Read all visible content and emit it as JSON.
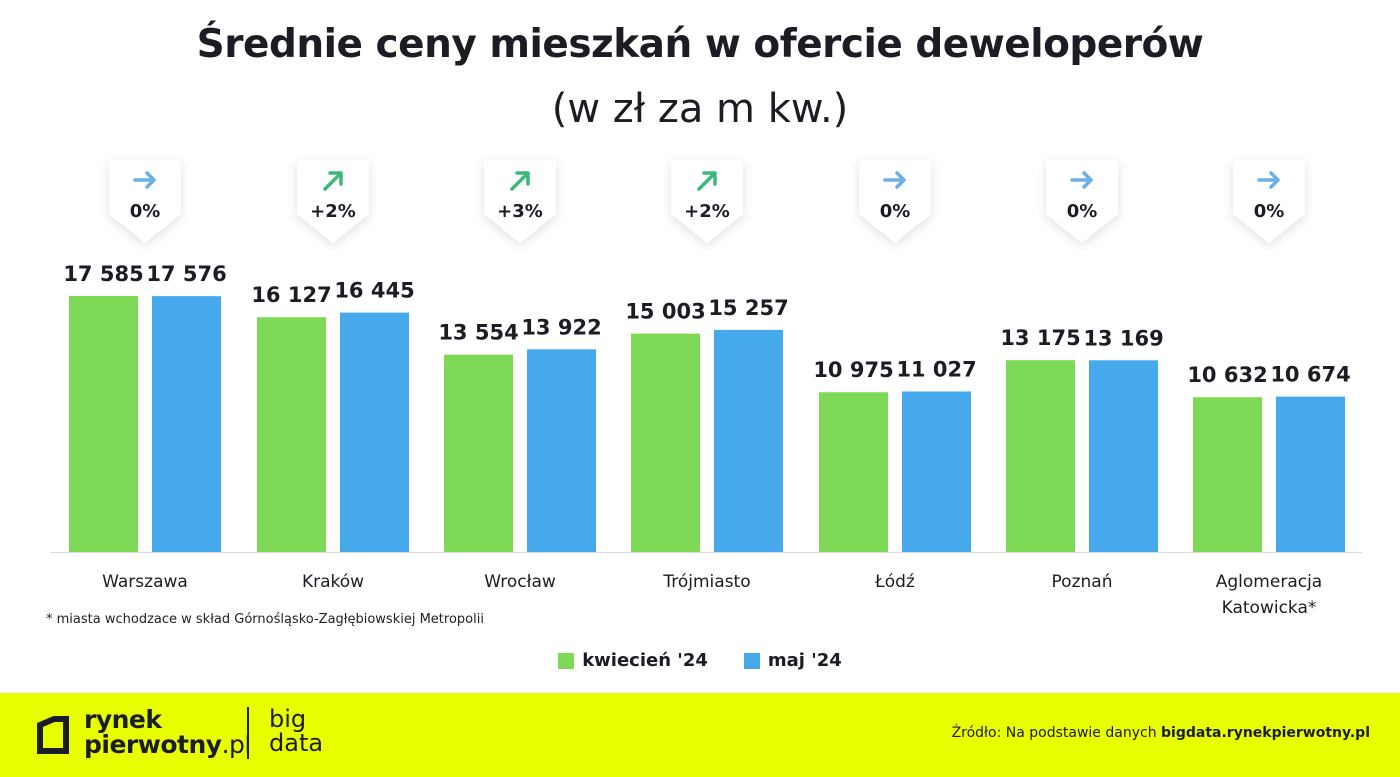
{
  "chart_data": {
    "type": "bar",
    "title": "Średnie ceny mieszkań w ofercie deweloperów",
    "subtitle": "(w zł za m kw.)",
    "categories": [
      "Warszawa",
      "Kraków",
      "Wrocław",
      "Trójmiasto",
      "Łódź",
      "Poznań",
      "Aglomeracja Katowicka*"
    ],
    "series": [
      {
        "name": "kwiecień '24",
        "color": "#7ed957",
        "values": [
          17585,
          16127,
          13554,
          15003,
          10975,
          13175,
          10632
        ],
        "labels": [
          "17 585",
          "16 127",
          "13 554",
          "15 003",
          "10 975",
          "13 175",
          "10 632"
        ]
      },
      {
        "name": "maj '24",
        "color": "#45a9ec",
        "values": [
          17576,
          16445,
          13922,
          15257,
          11027,
          13169,
          10674
        ],
        "labels": [
          "17 576",
          "16 445",
          "13 922",
          "15 257",
          "11 027",
          "13 169",
          "10 674"
        ]
      }
    ],
    "changes": [
      {
        "label": "0%",
        "direction": "flat"
      },
      {
        "label": "+2%",
        "direction": "up"
      },
      {
        "label": "+3%",
        "direction": "up"
      },
      {
        "label": "+2%",
        "direction": "up"
      },
      {
        "label": "0%",
        "direction": "flat"
      },
      {
        "label": "0%",
        "direction": "flat"
      },
      {
        "label": "0%",
        "direction": "flat"
      }
    ],
    "ylim": [
      0,
      17585
    ],
    "grid": false,
    "legend_position": "bottom-center"
  },
  "footnote": "* miasta wchodzace w skład Górnośląsko-Zagłębiowskiej Metropolii",
  "footer": {
    "logo_line1": "rynek",
    "logo_line2": "pierwotny",
    "logo_suffix": ".pl",
    "logo2_line1": "big",
    "logo2_line2": "data",
    "source_prefix": "Źródło: Na podstawie danych ",
    "source_bold": "bigdata.rynekpierwotny.pl"
  },
  "colors": {
    "flat_arrow": "#6ab0e6",
    "up_arrow": "#3cb878",
    "footer_bg": "#e8ff00"
  }
}
